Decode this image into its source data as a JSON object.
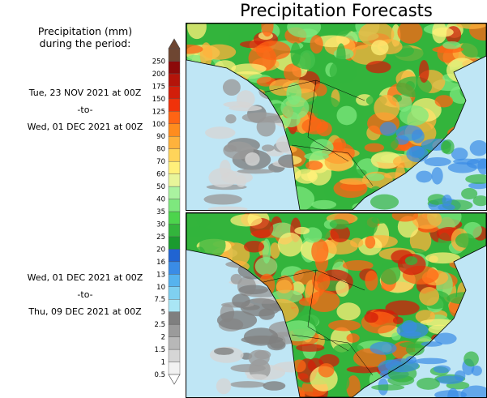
{
  "title": "Precipitation Forecasts",
  "subtitle_line1": "Precipitation (mm)",
  "subtitle_line2": "during the period:",
  "periods": [
    {
      "start": "Tue, 23 NOV 2021 at 00Z",
      "sep": "-to-",
      "end": "Wed, 01 DEC 2021 at 00Z"
    },
    {
      "start": "Wed, 01 DEC 2021 at 00Z",
      "sep": "-to-",
      "end": "Thu, 09 DEC 2021 at 00Z"
    }
  ],
  "legend": {
    "levels": [
      "0.5",
      "1",
      "1.5",
      "2",
      "2.5",
      "5",
      "7.5",
      "10",
      "13",
      "16",
      "20",
      "25",
      "30",
      "35",
      "40",
      "50",
      "60",
      "70",
      "80",
      "90",
      "100",
      "125",
      "150",
      "175",
      "200",
      "250"
    ],
    "colors": [
      "#f2f2f2",
      "#d6d6d6",
      "#b8b8b8",
      "#9b9b9b",
      "#7f7f7f",
      "#a9e6f5",
      "#7fd0f0",
      "#56b3ee",
      "#3a8ce6",
      "#2064d2",
      "#1a9a2e",
      "#33b43c",
      "#4cd44c",
      "#7ee87e",
      "#aaf2a0",
      "#e8f59a",
      "#fff07a",
      "#ffd45a",
      "#ffb23c",
      "#ff8c1e",
      "#ff6414",
      "#f0320a",
      "#d21e0a",
      "#b4140a",
      "#8c0a0a",
      "#6e4632"
    ]
  },
  "map": {
    "ocean_color": "#bfe6f5",
    "coast_color": "#000000",
    "wet_colors": [
      "#33b43c",
      "#7ee87e",
      "#fff07a",
      "#ffb23c",
      "#ff6414",
      "#d21e0a"
    ],
    "dry_colors": [
      "#9b9b9b",
      "#7f7f7f",
      "#d6d6d6"
    ]
  }
}
